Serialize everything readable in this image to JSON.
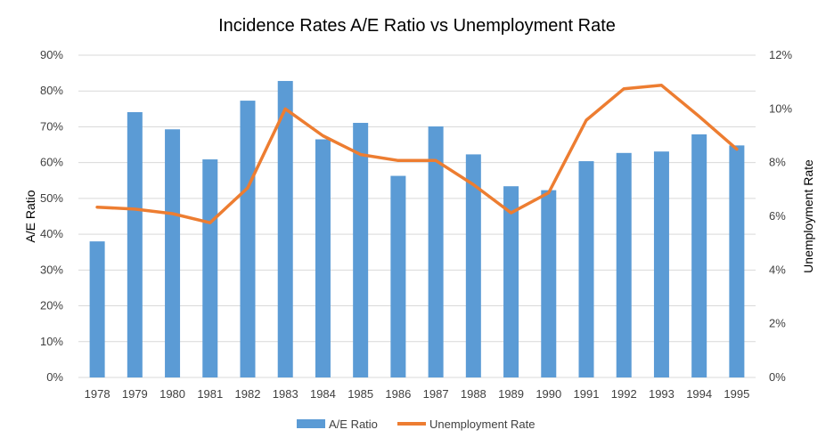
{
  "chart_data": {
    "type": "bar",
    "title": "Incidence Rates A/E Ratio vs Unemployment  Rate",
    "xlabel": "",
    "ylabel": "A/E Ratio",
    "y2label": "Unemployment Rate",
    "categories": [
      "1978",
      "1979",
      "1980",
      "1981",
      "1982",
      "1983",
      "1984",
      "1985",
      "1986",
      "1987",
      "1988",
      "1989",
      "1990",
      "1991",
      "1992",
      "1993",
      "1994",
      "1995"
    ],
    "ylim": [
      0,
      0.9
    ],
    "y2lim": [
      0,
      0.12
    ],
    "yticks": [
      "0%",
      "10%",
      "20%",
      "30%",
      "40%",
      "50%",
      "60%",
      "70%",
      "80%",
      "90%"
    ],
    "y2ticks": [
      "0%",
      "2%",
      "4%",
      "6%",
      "8%",
      "10%",
      "12%"
    ],
    "grid": true,
    "legend_position": "bottom",
    "series": [
      {
        "name": "A/E Ratio",
        "type": "bar",
        "axis": "left",
        "color": "#5b9bd5",
        "values": [
          0.38,
          0.741,
          0.693,
          0.609,
          0.773,
          0.828,
          0.665,
          0.711,
          0.563,
          0.701,
          0.623,
          0.534,
          0.523,
          0.604,
          0.627,
          0.631,
          0.679,
          0.648
        ]
      },
      {
        "name": "Unemployment Rate",
        "type": "line",
        "axis": "right",
        "color": "#ed7d31",
        "values": [
          0.0634,
          0.0627,
          0.061,
          0.0576,
          0.0706,
          0.1,
          0.09,
          0.083,
          0.0808,
          0.0808,
          0.0718,
          0.0613,
          0.0688,
          0.0958,
          0.1075,
          0.1088,
          0.0972,
          0.085
        ]
      }
    ]
  }
}
